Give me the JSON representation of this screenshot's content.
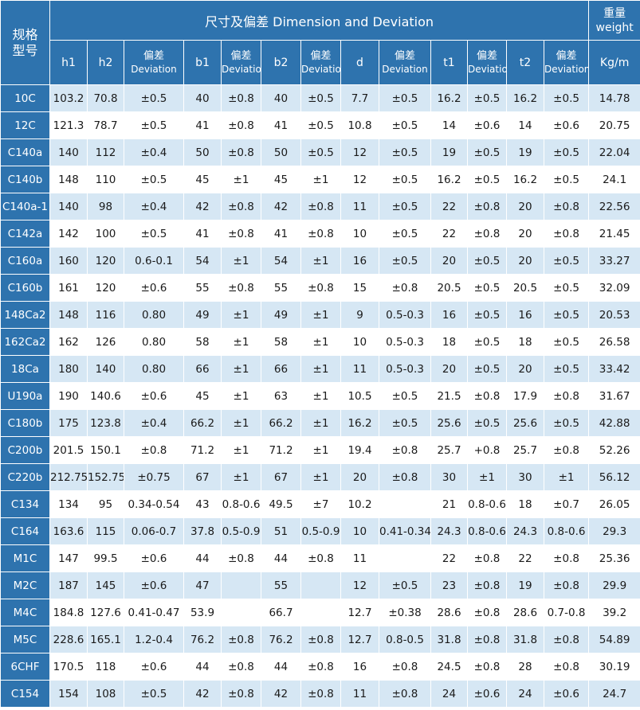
{
  "header": {
    "model_label": "规格\n型号",
    "group_label": "尺寸及偏差 Dimension and Deviation",
    "weight_label": "重量\nweight",
    "dev_cn": "偏差",
    "dev_en": "Deviation",
    "columns": {
      "h1": "h1",
      "h2": "h2",
      "b1": "b1",
      "b2": "b2",
      "d": "d",
      "t1": "t1",
      "t2": "t2",
      "weight_unit": "Kg/m"
    }
  },
  "rows": [
    [
      "10C",
      "103.2",
      "70.8",
      "±0.5",
      "40",
      "±0.8",
      "40",
      "±0.5",
      "7.7",
      "±0.5",
      "16.2",
      "±0.5",
      "16.2",
      "±0.5",
      "14.78"
    ],
    [
      "12C",
      "121.3",
      "78.7",
      "±0.5",
      "41",
      "±0.8",
      "41",
      "±0.5",
      "10.8",
      "±0.5",
      "14",
      "±0.6",
      "14",
      "±0.6",
      "20.75"
    ],
    [
      "C140a",
      "140",
      "112",
      "±0.4",
      "50",
      "±0.8",
      "50",
      "±0.5",
      "12",
      "±0.5",
      "19",
      "±0.5",
      "19",
      "±0.5",
      "22.04"
    ],
    [
      "C140b",
      "148",
      "110",
      "±0.5",
      "45",
      "±1",
      "45",
      "±1",
      "12",
      "±0.5",
      "16.2",
      "±0.5",
      "16.2",
      "±0.5",
      "24.1"
    ],
    [
      "C140a-1",
      "140",
      "98",
      "±0.4",
      "42",
      "±0.8",
      "42",
      "±0.8",
      "11",
      "±0.5",
      "22",
      "±0.8",
      "20",
      "±0.8",
      "22.56"
    ],
    [
      "C142a",
      "142",
      "100",
      "±0.5",
      "41",
      "±0.8",
      "41",
      "±0.8",
      "10",
      "±0.5",
      "22",
      "±0.8",
      "20",
      "±0.8",
      "21.45"
    ],
    [
      "C160a",
      "160",
      "120",
      "0.6-0.1",
      "54",
      "±1",
      "54",
      "±1",
      "16",
      "±0.5",
      "20",
      "±0.5",
      "20",
      "±0.5",
      "33.27"
    ],
    [
      "C160b",
      "161",
      "120",
      "±0.6",
      "55",
      "±0.8",
      "55",
      "±0.8",
      "15",
      "±0.8",
      "20.5",
      "±0.5",
      "20.5",
      "±0.5",
      "32.09"
    ],
    [
      "148Ca2",
      "148",
      "116",
      "0.80",
      "49",
      "±1",
      "49",
      "±1",
      "9",
      "0.5-0.3",
      "16",
      "±0.5",
      "16",
      "±0.5",
      "20.53"
    ],
    [
      "162Ca2",
      "162",
      "126",
      "0.80",
      "58",
      "±1",
      "58",
      "±1",
      "10",
      "0.5-0.3",
      "18",
      "±0.5",
      "18",
      "±0.5",
      "26.58"
    ],
    [
      "18Ca",
      "180",
      "140",
      "0.80",
      "66",
      "±1",
      "66",
      "±1",
      "11",
      "0.5-0.3",
      "20",
      "±0.5",
      "20",
      "±0.5",
      "33.42"
    ],
    [
      "U190a",
      "190",
      "140.6",
      "±0.6",
      "45",
      "±1",
      "63",
      "±1",
      "10.5",
      "±0.5",
      "21.5",
      "±0.8",
      "17.9",
      "±0.8",
      "31.67"
    ],
    [
      "C180b",
      "175",
      "123.8",
      "±0.4",
      "66.2",
      "±1",
      "66.2",
      "±1",
      "16.2",
      "±0.5",
      "25.6",
      "±0.5",
      "25.6",
      "±0.5",
      "42.88"
    ],
    [
      "C200b",
      "201.5",
      "150.1",
      "±0.8",
      "71.2",
      "±1",
      "71.2",
      "±1",
      "19.4",
      "±0.8",
      "25.7",
      "+0.8",
      "25.7",
      "±0.8",
      "52.26"
    ],
    [
      "C220b",
      "212.75",
      "152.75",
      "±0.75",
      "67",
      "±1",
      "67",
      "±1",
      "20",
      "±0.8",
      "30",
      "±1",
      "30",
      "±1",
      "56.12"
    ],
    [
      "C134",
      "134",
      "95",
      "0.34-0.54",
      "43",
      "0.8-0.6",
      "49.5",
      "±7",
      "10.2",
      "",
      "21",
      "0.8-0.6",
      "18",
      "±0.7",
      "26.05"
    ],
    [
      "C164",
      "163.6",
      "115",
      "0.06-0.7",
      "37.8",
      "0.5-0.9",
      "51",
      "0.5-0.9",
      "10",
      "0.41-0.34",
      "24.3",
      "0.8-0.6",
      "24.3",
      "0.8-0.6",
      "29.3"
    ],
    [
      "M1C",
      "147",
      "99.5",
      "±0.6",
      "44",
      "±0.8",
      "44",
      "±0.8",
      "11",
      "",
      "22",
      "±0.8",
      "22",
      "±0.8",
      "25.36"
    ],
    [
      "M2C",
      "187",
      "145",
      "±0.6",
      "47",
      "",
      "55",
      "",
      "12",
      "±0.5",
      "23",
      "±0.8",
      "19",
      "±0.8",
      "29.9"
    ],
    [
      "M4C",
      "184.8",
      "127.6",
      "0.41-0.47",
      "53.9",
      "",
      "66.7",
      "",
      "12.7",
      "±0.38",
      "28.6",
      "±0.8",
      "28.6",
      "0.7-0.8",
      "39.2"
    ],
    [
      "M5C",
      "228.6",
      "165.1",
      "1.2-0.4",
      "76.2",
      "±0.8",
      "76.2",
      "±0.8",
      "12.7",
      "0.8-0.5",
      "31.8",
      "±0.8",
      "31.8",
      "±0.8",
      "54.89"
    ],
    [
      "6CHF",
      "170.5",
      "118",
      "±0.6",
      "44",
      "±0.8",
      "44",
      "±0.8",
      "16",
      "±0.8",
      "24.5",
      "±0.8",
      "28",
      "±0.8",
      "30.19"
    ],
    [
      "C154",
      "154",
      "108",
      "±0.5",
      "42",
      "±0.8",
      "42",
      "±0.8",
      "11",
      "±0.8",
      "24",
      "±0.6",
      "24",
      "±0.6",
      "24.7"
    ]
  ]
}
